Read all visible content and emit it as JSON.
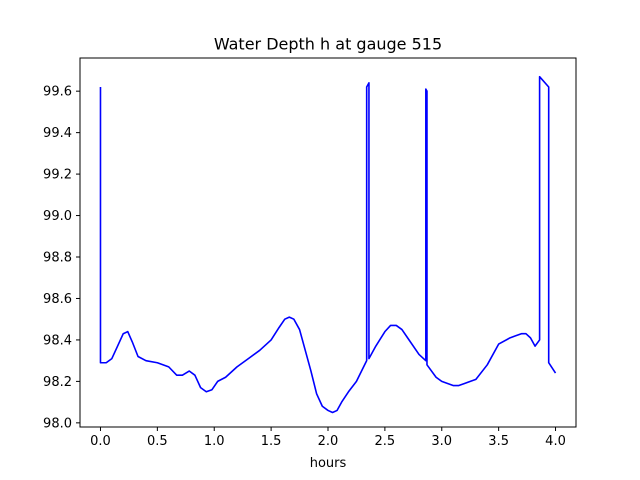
{
  "chart_data": {
    "type": "line",
    "title": "Water Depth h at gauge 515",
    "xlabel": "hours",
    "ylabel": "",
    "xlim": [
      -0.18,
      4.18
    ],
    "ylim": [
      97.98,
      99.76
    ],
    "xticks": [
      0.0,
      0.5,
      1.0,
      1.5,
      2.0,
      2.5,
      3.0,
      3.5,
      4.0
    ],
    "xtick_labels": [
      "0.0",
      "0.5",
      "1.0",
      "1.5",
      "2.0",
      "2.5",
      "3.0",
      "3.5",
      "4.0"
    ],
    "yticks": [
      98.0,
      98.2,
      98.4,
      98.6,
      98.8,
      99.0,
      99.2,
      99.4,
      99.6
    ],
    "ytick_labels": [
      "98.0",
      "98.2",
      "98.4",
      "98.6",
      "98.8",
      "99.0",
      "99.2",
      "99.4",
      "99.6"
    ],
    "grid": false,
    "series": [
      {
        "color": "#0000ff",
        "x": [
          0.0,
          0.0,
          0.0,
          0.05,
          0.1,
          0.15,
          0.2,
          0.24,
          0.28,
          0.33,
          0.4,
          0.5,
          0.6,
          0.67,
          0.72,
          0.78,
          0.83,
          0.88,
          0.93,
          0.98,
          1.03,
          1.1,
          1.2,
          1.3,
          1.4,
          1.5,
          1.57,
          1.62,
          1.66,
          1.7,
          1.75,
          1.8,
          1.85,
          1.9,
          1.95,
          2.0,
          2.04,
          2.08,
          2.12,
          2.18,
          2.25,
          2.34,
          2.34,
          2.36,
          2.36,
          2.42,
          2.5,
          2.55,
          2.6,
          2.65,
          2.7,
          2.8,
          2.86,
          2.86,
          2.87,
          2.87,
          2.95,
          3.0,
          3.1,
          3.15,
          3.2,
          3.3,
          3.4,
          3.5,
          3.6,
          3.65,
          3.7,
          3.74,
          3.78,
          3.82,
          3.86,
          3.86,
          3.94,
          3.94,
          4.0
        ],
        "y": [
          99.62,
          98.3,
          98.29,
          98.29,
          98.31,
          98.37,
          98.43,
          98.44,
          98.39,
          98.32,
          98.3,
          98.29,
          98.27,
          98.23,
          98.23,
          98.25,
          98.23,
          98.17,
          98.15,
          98.16,
          98.2,
          98.22,
          98.27,
          98.31,
          98.35,
          98.4,
          98.46,
          98.5,
          98.51,
          98.5,
          98.45,
          98.35,
          98.25,
          98.14,
          98.08,
          98.06,
          98.05,
          98.06,
          98.1,
          98.15,
          98.2,
          98.3,
          99.62,
          99.64,
          98.31,
          98.37,
          98.44,
          98.47,
          98.47,
          98.45,
          98.41,
          98.33,
          98.3,
          99.61,
          99.6,
          98.28,
          98.22,
          98.2,
          98.18,
          98.18,
          98.19,
          98.21,
          98.28,
          98.38,
          98.41,
          98.42,
          98.43,
          98.43,
          98.41,
          98.37,
          98.4,
          99.67,
          99.62,
          98.29,
          98.24
        ]
      }
    ]
  }
}
